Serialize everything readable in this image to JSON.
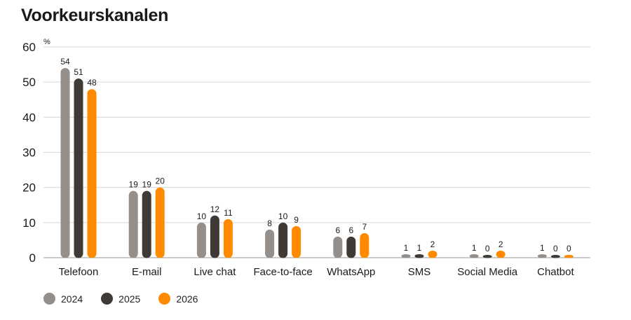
{
  "chart_data": {
    "type": "bar",
    "title": "Voorkeurskanalen",
    "ylabel": "%",
    "xlabel": "",
    "ylim": [
      0,
      60
    ],
    "yticks": [
      0,
      10,
      20,
      30,
      40,
      50,
      60
    ],
    "grid": true,
    "legend_position": "bottom-left",
    "categories": [
      "Telefoon",
      "E-mail",
      "Live chat",
      "Face-to-face",
      "WhatsApp",
      "SMS",
      "Social Media",
      "Chatbot"
    ],
    "series": [
      {
        "name": "2024",
        "color": "#948f8a",
        "values": [
          54,
          19,
          10,
          8,
          6,
          1,
          1,
          1
        ]
      },
      {
        "name": "2025",
        "color": "#3f3a35",
        "values": [
          51,
          19,
          12,
          10,
          6,
          1,
          0,
          0
        ]
      },
      {
        "name": "2026",
        "color": "#ff8a00",
        "values": [
          48,
          20,
          11,
          9,
          7,
          2,
          2,
          0
        ]
      }
    ]
  }
}
